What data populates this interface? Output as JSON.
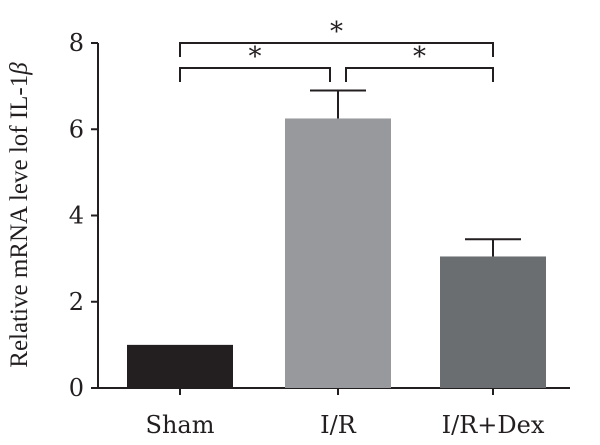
{
  "chart_data": {
    "type": "bar",
    "categories": [
      "Sham",
      "I/R",
      "I/R+Dex"
    ],
    "values": [
      1.0,
      6.25,
      3.05
    ],
    "errors": [
      0.0,
      0.65,
      0.4
    ],
    "colors": [
      "#231f20",
      "#97999c",
      "#6b6e70"
    ],
    "ylabel_prefix": "Relative mRNA leve lof IL-1",
    "ylabel_symbol": "β",
    "xlabel": "",
    "ylim": [
      0,
      8
    ],
    "yticks": [
      "0",
      "2",
      "4",
      "6",
      "8"
    ],
    "grid": false,
    "significance": [
      {
        "from": 1,
        "to": 2,
        "label": "*"
      },
      {
        "from": 2,
        "to": 3,
        "label": "*"
      },
      {
        "from": 1,
        "to": 3,
        "label": "*"
      }
    ]
  }
}
